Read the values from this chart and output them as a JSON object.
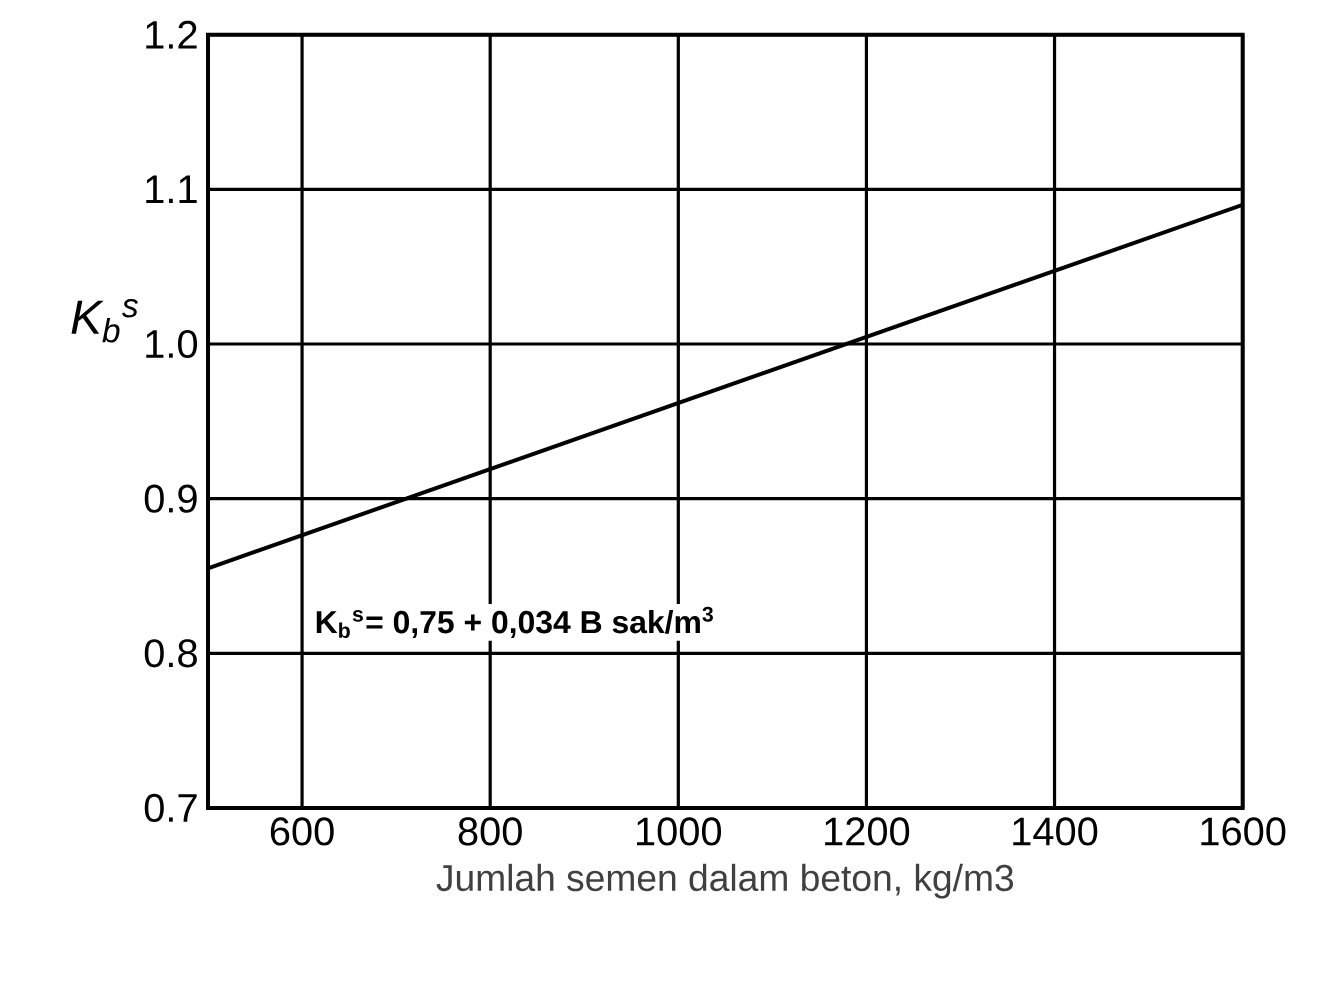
{
  "chart_data": {
    "type": "line",
    "xlabel": "Jumlah semen dalam beton, kg/m3",
    "ylabel": "K$_{b}$$^{s}$",
    "x": [
      500,
      1600
    ],
    "series": [
      {
        "color": "#000000",
        "values": [
          0.855,
          1.09
        ]
      }
    ],
    "xlim": [
      500,
      1600
    ],
    "ylim": [
      0.7,
      1.2
    ],
    "xticks": [
      600,
      800,
      1000,
      1200,
      1400,
      1600
    ],
    "yticks": [
      {
        "value": 0.7,
        "label": "0.7"
      },
      {
        "value": 0.8,
        "label": "0.8"
      },
      {
        "value": 0.9,
        "label": "0.9"
      },
      {
        "value": 1.0,
        "label": "1.0"
      },
      {
        "value": 1.1,
        "label": "1.1"
      },
      {
        "value": 1.2,
        "label": "1.2"
      }
    ],
    "grid": true,
    "marker": "none",
    "line_style": "solid",
    "annotations": [
      "K$_{b}$$^{s}$= 0,75 + 0,034 B sak/m$^{3}$"
    ]
  }
}
